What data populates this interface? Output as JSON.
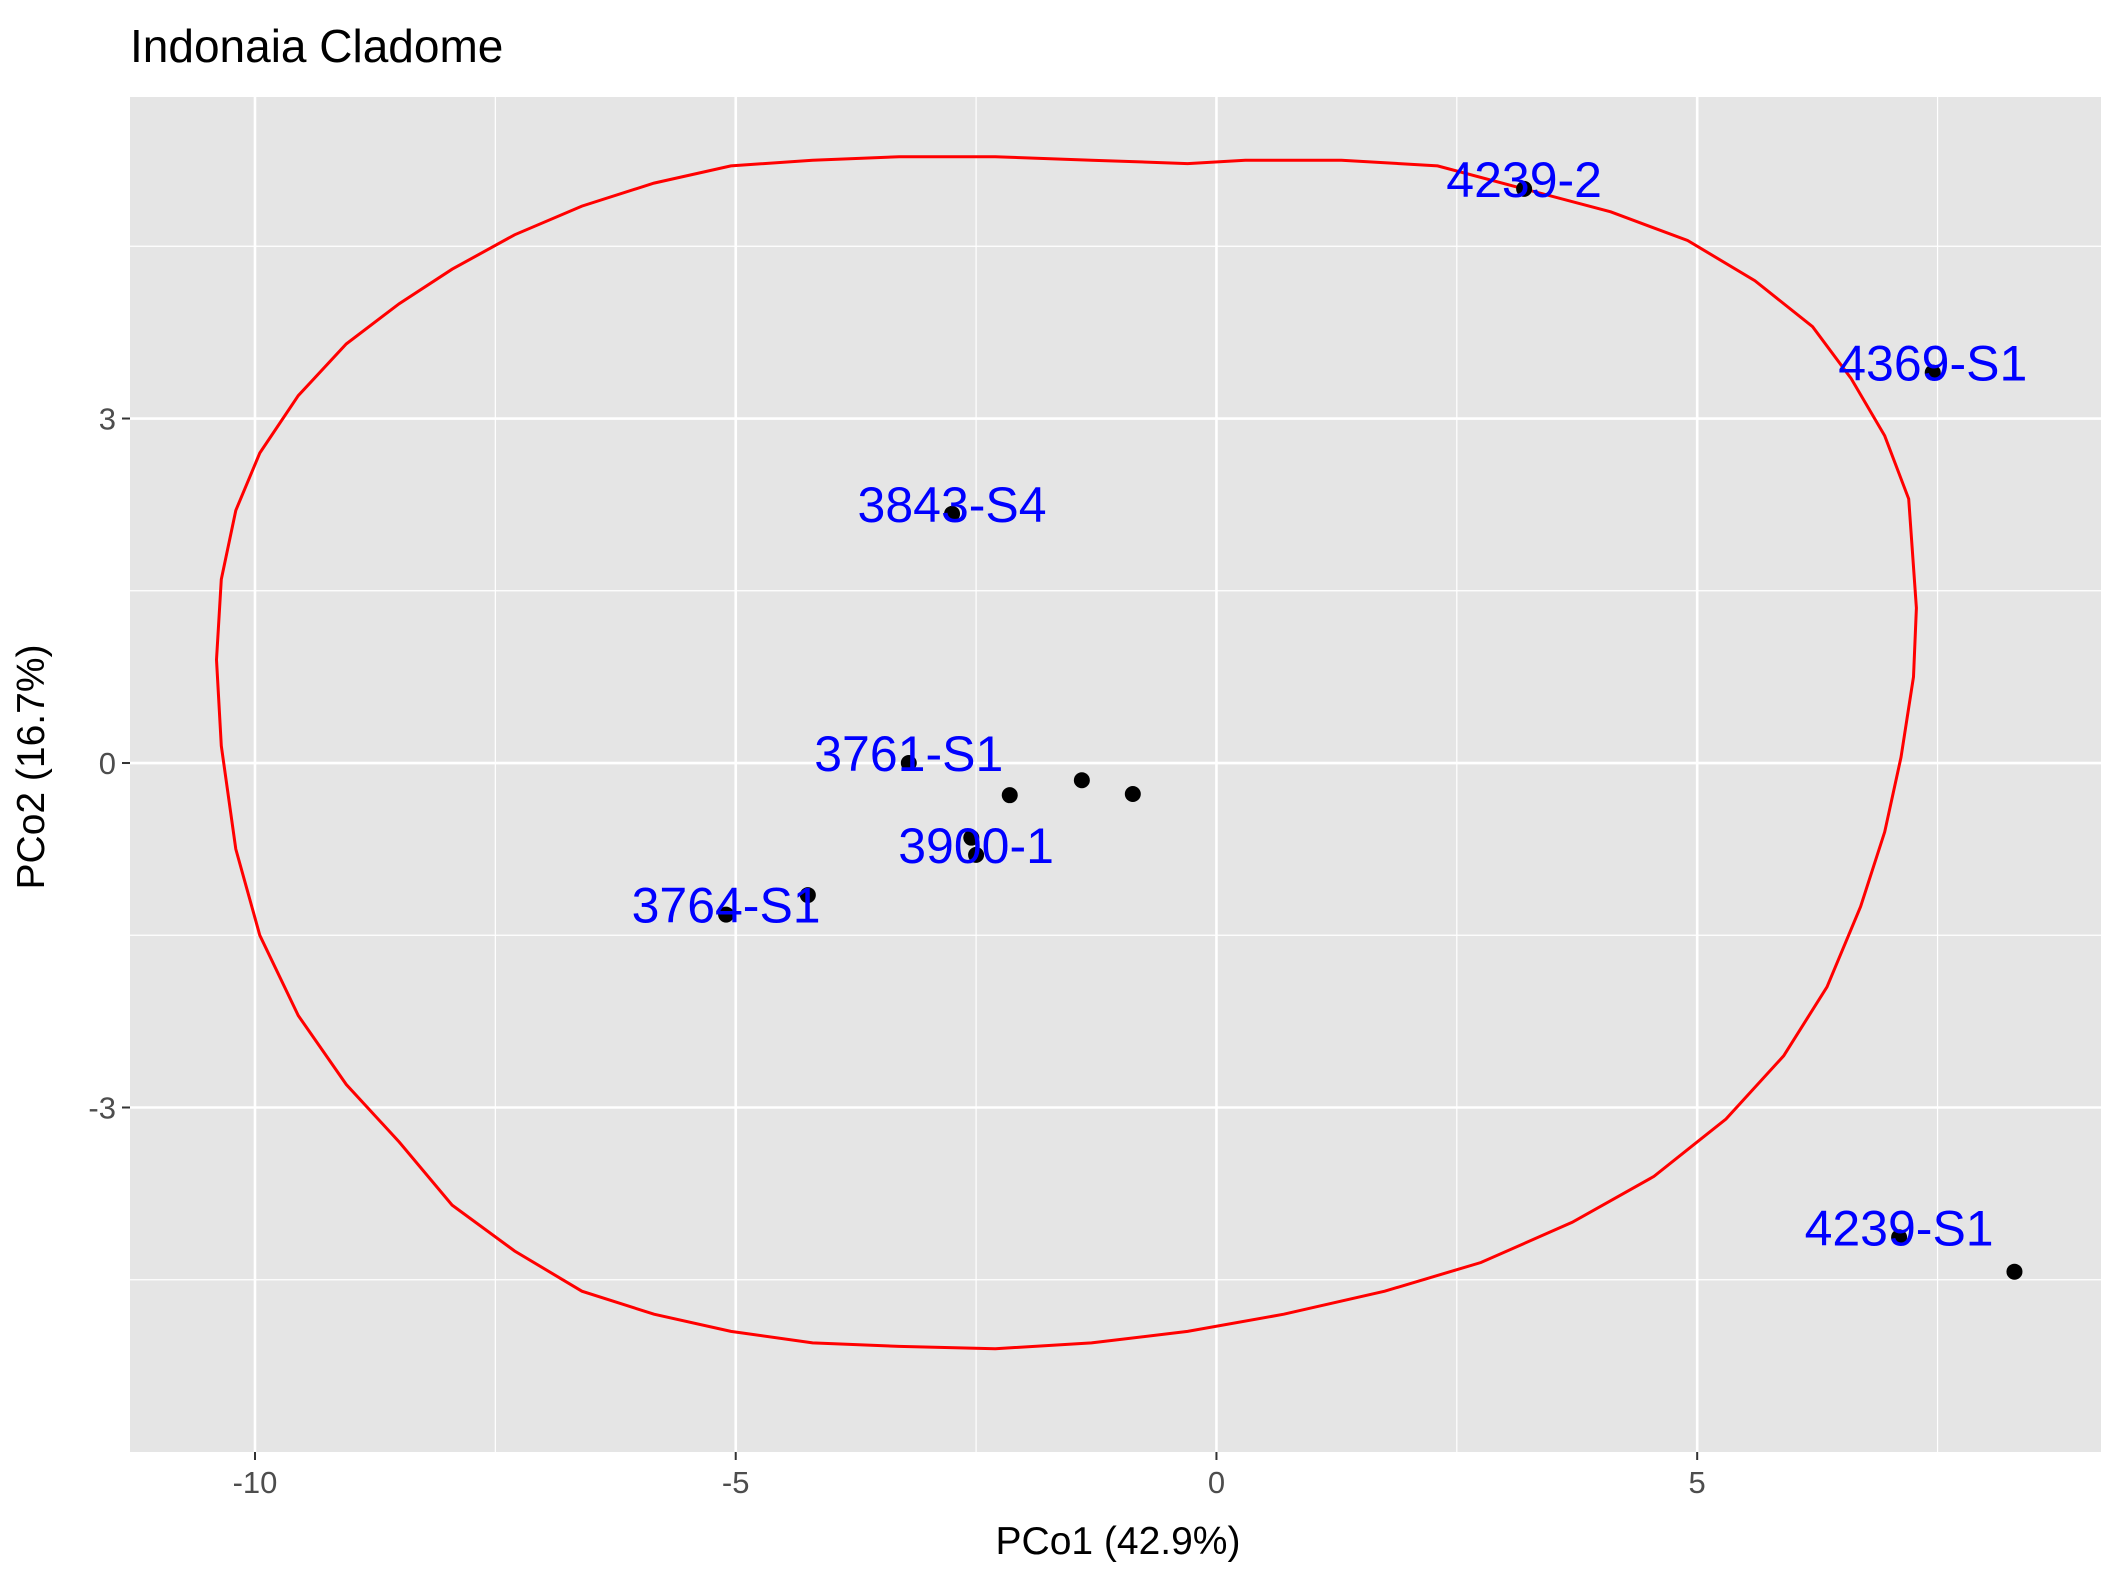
{
  "chart_data": {
    "type": "scatter",
    "title": "Indonaia Cladome",
    "xlabel": "PCo1 (42.9%)",
    "ylabel": "PCo2 (16.7%)",
    "xlim": [
      -11.3,
      9.2
    ],
    "ylim": [
      -6.0,
      5.8
    ],
    "x_ticks": [
      -10,
      -5,
      0,
      5
    ],
    "x_tick_labels": [
      "-10",
      "-5",
      "0",
      "5"
    ],
    "y_ticks": [
      -3,
      0,
      3
    ],
    "y_tick_labels": [
      "-3",
      "0",
      "3"
    ],
    "grid": true,
    "points": [
      {
        "x": 3.2,
        "y": 5.0,
        "label": "4239-2"
      },
      {
        "x": 7.45,
        "y": 3.4,
        "label": "4369-S1"
      },
      {
        "x": -2.75,
        "y": 2.17,
        "label": "3843-S4"
      },
      {
        "x": -3.2,
        "y": 0.0,
        "label": "3761-S1"
      },
      {
        "x": -2.55,
        "y": -0.65,
        "label": ""
      },
      {
        "x": -2.5,
        "y": -0.8,
        "label": "3900-1"
      },
      {
        "x": -2.15,
        "y": -0.28,
        "label": ""
      },
      {
        "x": -1.4,
        "y": -0.15,
        "label": ""
      },
      {
        "x": -0.87,
        "y": -0.27,
        "label": ""
      },
      {
        "x": -4.25,
        "y": -1.15,
        "label": ""
      },
      {
        "x": -5.1,
        "y": -1.32,
        "label": "3764-S1"
      },
      {
        "x": 7.1,
        "y": -4.13,
        "label": "4239-S1"
      },
      {
        "x": 8.3,
        "y": -4.43,
        "label": ""
      }
    ],
    "ellipse": {
      "color": "#ff0000",
      "x": [
        0.3,
        1.3,
        2.3,
        3.2,
        4.1,
        4.9,
        5.6,
        6.2,
        6.6,
        6.95,
        7.2,
        7.28,
        7.25,
        7.12,
        6.95,
        6.7,
        6.35,
        5.9,
        5.3,
        4.55,
        3.7,
        2.75,
        1.75,
        0.7,
        -0.3,
        -1.3,
        -2.3,
        -3.3,
        -4.2,
        -5.05,
        -5.85,
        -6.6,
        -7.3,
        -7.95,
        -8.5,
        -9.05,
        -9.55,
        -9.95,
        -10.2,
        -10.35,
        -10.4,
        -10.35,
        -10.2,
        -9.95,
        -9.55,
        -9.05,
        -8.5,
        -7.95,
        -7.3,
        -6.6,
        -5.85,
        -5.05,
        -4.2,
        -3.3,
        -2.3,
        -1.3,
        -0.3,
        0.3
      ],
      "y": [
        5.25,
        5.25,
        5.2,
        5.0,
        4.8,
        4.55,
        4.2,
        3.8,
        3.35,
        2.85,
        2.3,
        1.35,
        0.75,
        0.05,
        -0.6,
        -1.25,
        -1.95,
        -2.55,
        -3.1,
        -3.6,
        -4.0,
        -4.35,
        -4.6,
        -4.8,
        -4.95,
        -5.05,
        -5.1,
        -5.08,
        -5.05,
        -4.95,
        -4.8,
        -4.6,
        -4.25,
        -3.85,
        -3.3,
        -2.8,
        -2.2,
        -1.5,
        -0.75,
        0.15,
        0.9,
        1.6,
        2.2,
        2.7,
        3.2,
        3.65,
        4.0,
        4.3,
        4.6,
        4.85,
        5.05,
        5.2,
        5.25,
        5.28,
        5.28,
        5.25,
        5.22,
        5.25
      ]
    },
    "colors": {
      "panel_background": "#e5e5e5",
      "grid_line": "#ffffff",
      "point": "#000000",
      "label": "#0000ff",
      "tick_text": "#4d4d4d"
    }
  }
}
